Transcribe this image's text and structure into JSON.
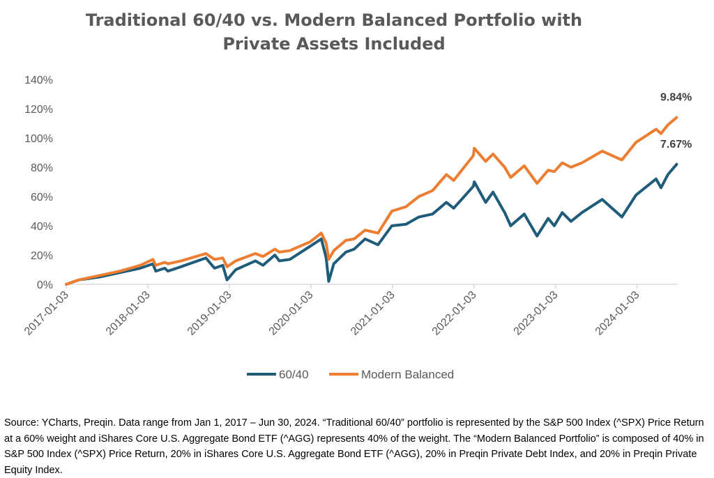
{
  "chart_data": {
    "type": "line",
    "title_lines": [
      "Traditional 60/40 vs. Modern Balanced Portfolio with",
      "Private Assets Included"
    ],
    "xlabel": "",
    "ylabel": "",
    "x_ticks": [
      "2017-01-03",
      "2018-01-03",
      "2019-01-03",
      "2020-01-03",
      "2021-01-03",
      "2022-01-03",
      "2023-01-03",
      "2024-01-03"
    ],
    "y_ticks": [
      "0%",
      "20%",
      "40%",
      "60%",
      "80%",
      "100%",
      "120%",
      "140%"
    ],
    "ylim": [
      0,
      140
    ],
    "y_unit": "%",
    "grid": false,
    "legend_position": "bottom",
    "series": [
      {
        "name": "60/40",
        "color": "#1f5c7a",
        "end_label": "7.67%",
        "points": [
          [
            "2017-01-03",
            0
          ],
          [
            "2017-03-01",
            3
          ],
          [
            "2017-06-01",
            5
          ],
          [
            "2017-09-01",
            8
          ],
          [
            "2017-12-01",
            11
          ],
          [
            "2018-01-26",
            14
          ],
          [
            "2018-02-08",
            9
          ],
          [
            "2018-03-20",
            11
          ],
          [
            "2018-04-03",
            9
          ],
          [
            "2018-06-01",
            12
          ],
          [
            "2018-09-20",
            18
          ],
          [
            "2018-10-29",
            11
          ],
          [
            "2018-12-05",
            13
          ],
          [
            "2018-12-24",
            3
          ],
          [
            "2019-02-01",
            10
          ],
          [
            "2019-04-30",
            16
          ],
          [
            "2019-06-03",
            13
          ],
          [
            "2019-07-26",
            20
          ],
          [
            "2019-08-15",
            16
          ],
          [
            "2019-10-01",
            17
          ],
          [
            "2019-12-31",
            26
          ],
          [
            "2020-02-19",
            31
          ],
          [
            "2020-03-12",
            18
          ],
          [
            "2020-03-23",
            2
          ],
          [
            "2020-04-15",
            14
          ],
          [
            "2020-06-08",
            22
          ],
          [
            "2020-07-15",
            24
          ],
          [
            "2020-09-02",
            31
          ],
          [
            "2020-10-30",
            27
          ],
          [
            "2020-12-31",
            40
          ],
          [
            "2021-03-04",
            41
          ],
          [
            "2021-05-01",
            46
          ],
          [
            "2021-07-01",
            48
          ],
          [
            "2021-09-01",
            56
          ],
          [
            "2021-10-04",
            52
          ],
          [
            "2021-12-31",
            67
          ],
          [
            "2022-01-04",
            70
          ],
          [
            "2022-02-24",
            56
          ],
          [
            "2022-03-29",
            63
          ],
          [
            "2022-05-20",
            49
          ],
          [
            "2022-06-16",
            40
          ],
          [
            "2022-08-16",
            48
          ],
          [
            "2022-10-12",
            33
          ],
          [
            "2022-12-01",
            45
          ],
          [
            "2022-12-28",
            40
          ],
          [
            "2023-02-02",
            49
          ],
          [
            "2023-03-13",
            43
          ],
          [
            "2023-05-01",
            49
          ],
          [
            "2023-07-31",
            58
          ],
          [
            "2023-10-27",
            46
          ],
          [
            "2023-12-29",
            61
          ],
          [
            "2024-03-28",
            72
          ],
          [
            "2024-04-19",
            66
          ],
          [
            "2024-05-20",
            75
          ],
          [
            "2024-06-28",
            82
          ]
        ]
      },
      {
        "name": "Modern Balanced",
        "color": "#ed7d31",
        "end_label": "9.84%",
        "points": [
          [
            "2017-01-03",
            0
          ],
          [
            "2017-03-01",
            3
          ],
          [
            "2017-06-01",
            6
          ],
          [
            "2017-09-01",
            9
          ],
          [
            "2017-12-01",
            13
          ],
          [
            "2018-01-26",
            17
          ],
          [
            "2018-02-08",
            13
          ],
          [
            "2018-03-20",
            15
          ],
          [
            "2018-04-03",
            14
          ],
          [
            "2018-06-01",
            16
          ],
          [
            "2018-09-20",
            21
          ],
          [
            "2018-10-29",
            17
          ],
          [
            "2018-12-05",
            18
          ],
          [
            "2018-12-24",
            12
          ],
          [
            "2019-02-01",
            16
          ],
          [
            "2019-04-30",
            21
          ],
          [
            "2019-06-03",
            19
          ],
          [
            "2019-07-26",
            24
          ],
          [
            "2019-08-15",
            22
          ],
          [
            "2019-10-01",
            23
          ],
          [
            "2019-12-31",
            29
          ],
          [
            "2020-02-19",
            35
          ],
          [
            "2020-03-12",
            28
          ],
          [
            "2020-03-23",
            17
          ],
          [
            "2020-04-15",
            23
          ],
          [
            "2020-06-08",
            30
          ],
          [
            "2020-07-15",
            31
          ],
          [
            "2020-09-02",
            37
          ],
          [
            "2020-10-30",
            35
          ],
          [
            "2020-12-31",
            50
          ],
          [
            "2021-03-04",
            53
          ],
          [
            "2021-05-01",
            60
          ],
          [
            "2021-07-01",
            64
          ],
          [
            "2021-09-01",
            75
          ],
          [
            "2021-10-04",
            71
          ],
          [
            "2021-12-31",
            88
          ],
          [
            "2022-01-04",
            93
          ],
          [
            "2022-02-24",
            84
          ],
          [
            "2022-03-29",
            89
          ],
          [
            "2022-05-20",
            80
          ],
          [
            "2022-06-16",
            73
          ],
          [
            "2022-08-16",
            81
          ],
          [
            "2022-10-12",
            69
          ],
          [
            "2022-12-01",
            78
          ],
          [
            "2022-12-28",
            77
          ],
          [
            "2023-02-02",
            83
          ],
          [
            "2023-03-13",
            80
          ],
          [
            "2023-05-01",
            83
          ],
          [
            "2023-07-31",
            91
          ],
          [
            "2023-10-27",
            85
          ],
          [
            "2023-12-29",
            97
          ],
          [
            "2024-03-28",
            106
          ],
          [
            "2024-04-19",
            103
          ],
          [
            "2024-05-20",
            109
          ],
          [
            "2024-06-28",
            114
          ]
        ]
      }
    ]
  },
  "source_note": "Source: YCharts, Preqin. Data range from Jan 1, 2017 – Jun 30, 2024. “Traditional 60/40” portfolio is represented by the S&P 500 Index (^SPX) Price Return at a 60% weight and iShares Core U.S. Aggregate Bond ETF (^AGG) represents 40% of the weight. The “Modern Balanced Portfolio” is composed of 40% in S&P 500 Index (^SPX) Price Return, 20% in iShares Core U.S. Aggregate Bond ETF (^AGG), 20% in Preqin Private Debt Index, and 20% in Preqin Private Equity Index."
}
